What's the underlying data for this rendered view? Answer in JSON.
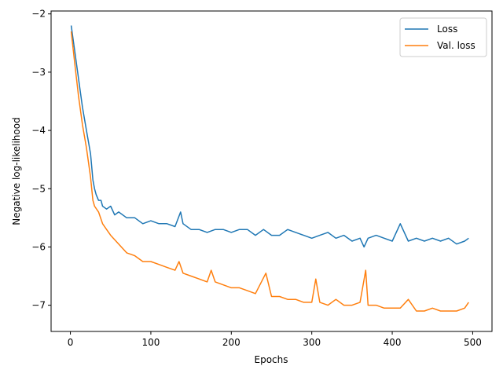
{
  "chart_data": {
    "type": "line",
    "title": "",
    "xlabel": "Epochs",
    "ylabel": "Negative log-likelihood",
    "xlim": [
      -24,
      524
    ],
    "ylim": [
      -7.45,
      -1.95
    ],
    "xticks": [
      0,
      100,
      200,
      300,
      400,
      500
    ],
    "yticks": [
      -7,
      -6,
      -5,
      -4,
      -3,
      -2
    ],
    "xtick_labels": [
      "0",
      "100",
      "200",
      "300",
      "400",
      "500"
    ],
    "ytick_labels": [
      "−7",
      "−6",
      "−5",
      "−4",
      "−3",
      "−2"
    ],
    "grid": false,
    "legend_position": "top-right",
    "series": [
      {
        "name": "Loss",
        "color": "#1f77b4",
        "x": [
          1,
          5,
          10,
          15,
          20,
          25,
          28,
          30,
          32,
          35,
          38,
          40,
          45,
          50,
          55,
          60,
          70,
          80,
          90,
          100,
          110,
          120,
          130,
          137,
          140,
          150,
          160,
          170,
          180,
          190,
          200,
          210,
          220,
          230,
          240,
          250,
          260,
          270,
          280,
          290,
          300,
          310,
          320,
          330,
          340,
          350,
          360,
          365,
          370,
          380,
          390,
          400,
          410,
          420,
          430,
          440,
          450,
          460,
          470,
          480,
          490,
          495
        ],
        "y": [
          -2.2,
          -2.6,
          -3.1,
          -3.6,
          -4.0,
          -4.4,
          -4.85,
          -5.0,
          -5.1,
          -5.2,
          -5.2,
          -5.3,
          -5.35,
          -5.3,
          -5.45,
          -5.4,
          -5.5,
          -5.5,
          -5.6,
          -5.55,
          -5.6,
          -5.6,
          -5.65,
          -5.4,
          -5.6,
          -5.7,
          -5.7,
          -5.75,
          -5.7,
          -5.7,
          -5.75,
          -5.7,
          -5.7,
          -5.8,
          -5.7,
          -5.8,
          -5.8,
          -5.7,
          -5.75,
          -5.8,
          -5.85,
          -5.8,
          -5.75,
          -5.85,
          -5.8,
          -5.9,
          -5.85,
          -6.0,
          -5.85,
          -5.8,
          -5.85,
          -5.9,
          -5.6,
          -5.9,
          -5.85,
          -5.9,
          -5.85,
          -5.9,
          -5.85,
          -5.95,
          -5.9,
          -5.85
        ]
      },
      {
        "name": "Val. loss",
        "color": "#ff7f0e",
        "x": [
          1,
          5,
          10,
          15,
          20,
          25,
          28,
          30,
          35,
          40,
          45,
          50,
          60,
          70,
          80,
          90,
          100,
          110,
          120,
          130,
          135,
          140,
          150,
          160,
          170,
          175,
          180,
          190,
          200,
          210,
          220,
          230,
          243,
          250,
          260,
          270,
          280,
          290,
          300,
          305,
          310,
          320,
          330,
          340,
          350,
          360,
          367,
          370,
          380,
          390,
          400,
          410,
          420,
          430,
          440,
          450,
          460,
          470,
          480,
          490,
          495
        ],
        "y": [
          -2.3,
          -2.8,
          -3.4,
          -3.9,
          -4.3,
          -4.8,
          -5.2,
          -5.3,
          -5.4,
          -5.6,
          -5.7,
          -5.8,
          -5.95,
          -6.1,
          -6.15,
          -6.25,
          -6.25,
          -6.3,
          -6.35,
          -6.4,
          -6.25,
          -6.45,
          -6.5,
          -6.55,
          -6.6,
          -6.4,
          -6.6,
          -6.65,
          -6.7,
          -6.7,
          -6.75,
          -6.8,
          -6.45,
          -6.85,
          -6.85,
          -6.9,
          -6.9,
          -6.95,
          -6.95,
          -6.55,
          -6.95,
          -7.0,
          -6.9,
          -7.0,
          -7.0,
          -6.95,
          -6.4,
          -7.0,
          -7.0,
          -7.05,
          -7.05,
          -7.05,
          -6.9,
          -7.1,
          -7.1,
          -7.05,
          -7.1,
          -7.1,
          -7.1,
          -7.05,
          -6.95
        ]
      }
    ]
  }
}
